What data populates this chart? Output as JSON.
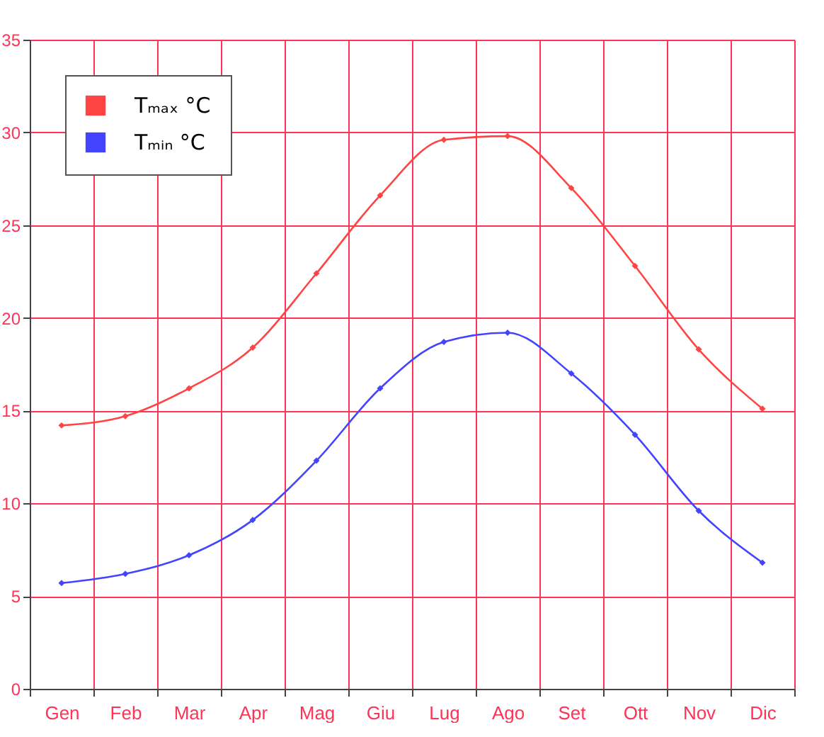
{
  "chart_data": {
    "type": "line",
    "categories": [
      "Gen",
      "Feb",
      "Mar",
      "Apr",
      "Mag",
      "Giu",
      "Lug",
      "Ago",
      "Set",
      "Ott",
      "Nov",
      "Dic"
    ],
    "series": [
      {
        "name": "Tₘₐₓ °C",
        "color": "#ff4444",
        "values": [
          14.2,
          14.7,
          16.2,
          18.4,
          22.4,
          26.6,
          29.6,
          29.8,
          27.0,
          22.8,
          18.3,
          15.1
        ]
      },
      {
        "name": "Tₘᵢₙ °C",
        "color": "#4444ff",
        "values": [
          5.7,
          6.2,
          7.2,
          9.1,
          12.3,
          16.2,
          18.7,
          19.2,
          17.0,
          13.7,
          9.6,
          6.8
        ]
      }
    ],
    "ylim": [
      0,
      35
    ],
    "yticks": [
      0,
      5,
      10,
      15,
      20,
      25,
      30,
      35
    ],
    "grid": true,
    "legend": "top left",
    "marker": "diamond",
    "line_style": "solid"
  }
}
